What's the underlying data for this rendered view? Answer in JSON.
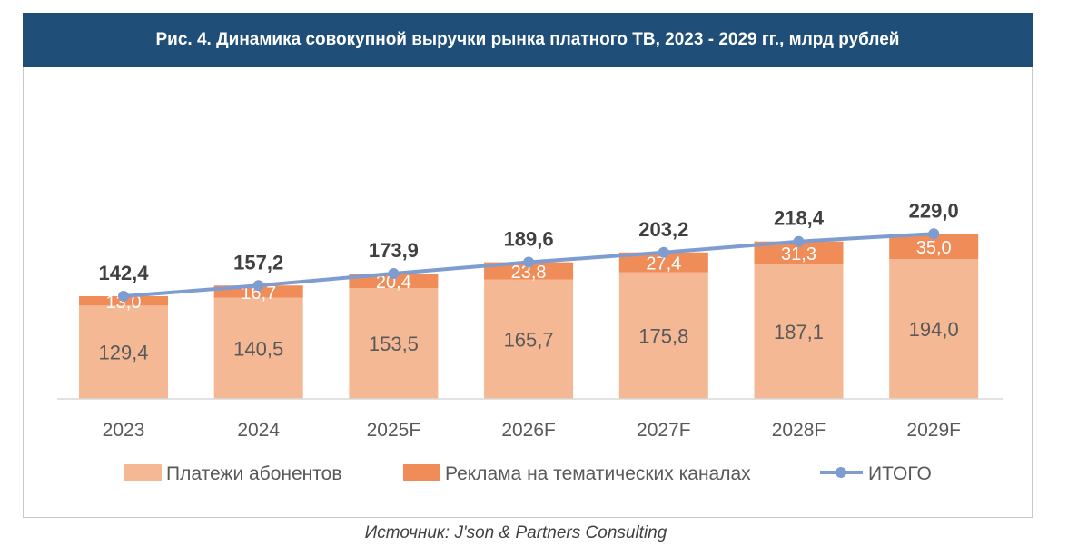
{
  "title": "Рис. 4. Динамика совокупной выручки рынка платного ТВ, 2023 - 2029 гг., млрд рублей",
  "source": "Источник: J'son & Partners Consulting",
  "colors": {
    "header": "#1f4e79",
    "subscribers": "#f4b894",
    "ads": "#ef8c58",
    "total": "#7f9cd1"
  },
  "chart_data": {
    "type": "bar",
    "stacked": true,
    "categories": [
      "2023",
      "2024",
      "2025F",
      "2026F",
      "2027F",
      "2028F",
      "2029F"
    ],
    "series": [
      {
        "name": "Платежи абонентов",
        "type": "bar",
        "values": [
          129.4,
          140.5,
          153.5,
          165.7,
          175.8,
          187.1,
          194.0
        ],
        "labels": [
          "129,4",
          "140,5",
          "153,5",
          "165,7",
          "175,8",
          "187,1",
          "194,0"
        ]
      },
      {
        "name": "Реклама на тематических каналах",
        "type": "bar",
        "values": [
          13.0,
          16.7,
          20.4,
          23.8,
          27.4,
          31.3,
          35.0
        ],
        "labels": [
          "13,0",
          "16,7",
          "20,4",
          "23,8",
          "27,4",
          "31,3",
          "35,0"
        ]
      },
      {
        "name": "ИТОГО",
        "type": "line",
        "values": [
          142.4,
          157.2,
          173.9,
          189.6,
          203.2,
          218.4,
          229.0
        ],
        "labels": [
          "142,4",
          "157,2",
          "173,9",
          "189,6",
          "203,2",
          "218,4",
          "229,0"
        ]
      }
    ],
    "ylim": [
      0,
      230
    ],
    "grid": false,
    "legend_position": "bottom"
  }
}
